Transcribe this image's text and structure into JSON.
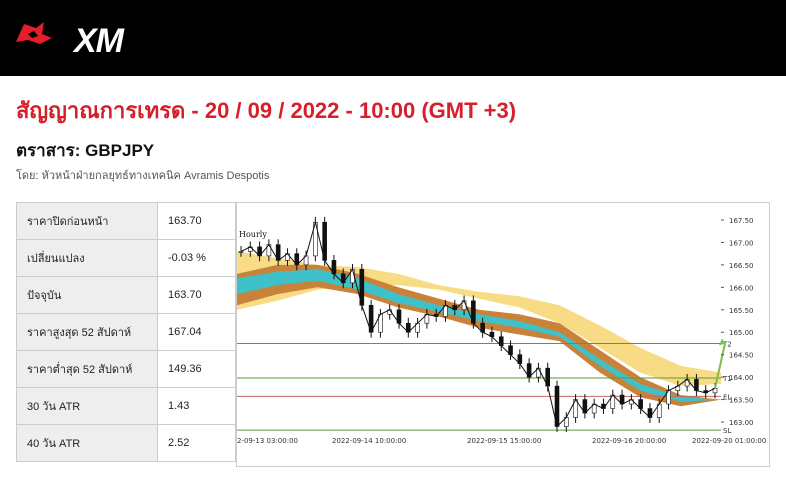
{
  "header": {
    "brand": "XM"
  },
  "page": {
    "title": "สัญญาณการเทรด - 20 / 09 / 2022 - 10:00 (GMT +3)",
    "instrument": "ตราสาร: GBPJPY",
    "author": "โดย: หัวหน้าฝ่ายกลยุทธ์ทางเทคนิค Avramis Despotis"
  },
  "stats": [
    {
      "label": "ราคาปิดก่อนหน้า",
      "value": "163.70"
    },
    {
      "label": "เปลี่ยนแปลง",
      "value": "-0.03 %"
    },
    {
      "label": "ปัจจุบัน",
      "value": "163.70"
    },
    {
      "label": "ราคาสูงสุด 52 สัปดาห์",
      "value": "167.04"
    },
    {
      "label": "ราคาต่ำสุด 52 สัปดาห์",
      "value": "149.36"
    },
    {
      "label": "30 วัน ATR",
      "value": "1.43"
    },
    {
      "label": "40 วัน ATR",
      "value": "2.52"
    }
  ],
  "chart_data": {
    "type": "line",
    "title": "Hourly",
    "x_labels": [
      "2-09-13 03:00:00",
      "2022-09-14 10:00:00",
      "2022-09-15 15:00:00",
      "2022-09-16 20:00:00",
      "2022-09-20 01:00:00"
    ],
    "y_ticks": [
      167.5,
      167.0,
      166.5,
      166.0,
      165.5,
      165.0,
      164.5,
      164.0,
      163.5,
      163.0
    ],
    "ylim": [
      162.8,
      167.7
    ],
    "levels": [
      {
        "name": "T2",
        "value": 164.75,
        "color": "#5a9a3a"
      },
      {
        "name": "T1",
        "value": 163.98,
        "color": "#5a9a3a"
      },
      {
        "name": "EL",
        "value": 163.57,
        "color": "#c06a5a"
      },
      {
        "name": "SL",
        "value": 162.82,
        "color": "#5a9a3a"
      }
    ],
    "price": [
      166.8,
      166.9,
      166.7,
      166.95,
      166.6,
      166.75,
      166.5,
      166.7,
      167.45,
      166.6,
      166.3,
      166.1,
      166.4,
      165.6,
      165.0,
      165.4,
      165.5,
      165.2,
      165.0,
      165.2,
      165.4,
      165.35,
      165.6,
      165.5,
      165.7,
      165.2,
      165.0,
      164.9,
      164.7,
      164.5,
      164.3,
      164.0,
      164.2,
      163.8,
      162.9,
      163.1,
      163.5,
      163.2,
      163.4,
      163.3,
      163.6,
      163.4,
      163.5,
      163.3,
      163.1,
      163.4,
      163.7,
      163.8,
      163.95,
      163.7,
      163.65,
      163.75
    ],
    "band_outer_hi": [
      166.8,
      166.65,
      166.5,
      166.45,
      166.3,
      166.05,
      165.9,
      165.8,
      165.6,
      165.15,
      164.65,
      164.25,
      164.1
    ],
    "band_outer_lo": [
      165.5,
      165.7,
      165.95,
      166.05,
      166.05,
      165.95,
      165.75,
      165.55,
      165.2,
      164.65,
      164.1,
      163.8,
      163.85
    ],
    "band_mid_hi": [
      166.3,
      166.5,
      166.5,
      166.3,
      166.0,
      165.75,
      165.5,
      165.4,
      165.2,
      164.6,
      164.0,
      163.6,
      163.5
    ],
    "band_mid_lo": [
      165.6,
      165.85,
      166.0,
      165.85,
      165.55,
      165.35,
      165.1,
      164.95,
      164.8,
      164.1,
      163.55,
      163.35,
      163.5
    ],
    "band_inner_hi": [
      166.2,
      166.35,
      166.4,
      166.2,
      165.85,
      165.6,
      165.4,
      165.25,
      165.0,
      164.4,
      163.85,
      163.55,
      163.5
    ],
    "band_inner_lo": [
      165.85,
      166.05,
      166.15,
      165.95,
      165.65,
      165.45,
      165.25,
      165.1,
      164.9,
      164.25,
      163.7,
      163.45,
      163.5
    ]
  }
}
